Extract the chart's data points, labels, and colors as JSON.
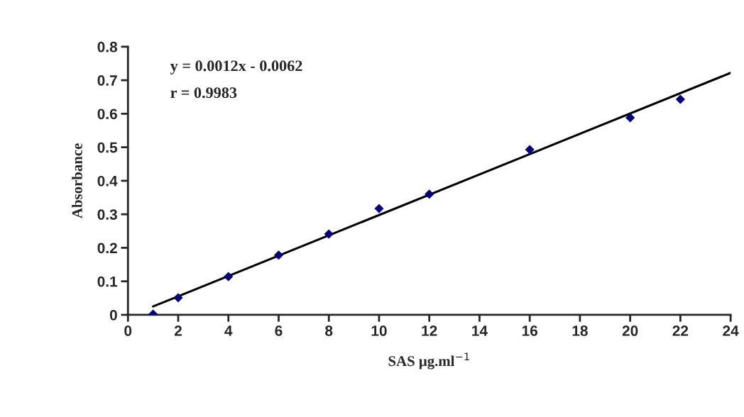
{
  "chart_data": {
    "type": "scatter",
    "xlabel": "SAS μg.ml$^{−1}$",
    "ylabel": "Absorbance",
    "annotations": [
      "y = 0.0012x - 0.0062",
      "r = 0.9983"
    ],
    "series": [
      {
        "color": "#000080",
        "marker": "diamond",
        "x": [
          1,
          2,
          4,
          6,
          8,
          10,
          12,
          16,
          20,
          22
        ],
        "values": [
          0.002,
          0.051,
          0.114,
          0.178,
          0.241,
          0.317,
          0.36,
          0.493,
          0.588,
          0.643
        ]
      },
      {
        "type": "line",
        "color": "#000000",
        "line_style": "solid",
        "x": [
          1,
          24
        ],
        "values": [
          0.025,
          0.722
        ]
      }
    ],
    "xlim": [
      0,
      24
    ],
    "xticks": [
      0,
      2,
      4,
      6,
      8,
      10,
      12,
      14,
      16,
      18,
      20,
      22,
      24
    ],
    "ylim": [
      0,
      0.8
    ],
    "yticks": [
      0,
      0.1,
      0.2,
      0.3,
      0.4,
      0.5,
      0.6,
      0.7,
      0.8
    ],
    "grid": false,
    "legend": false
  }
}
